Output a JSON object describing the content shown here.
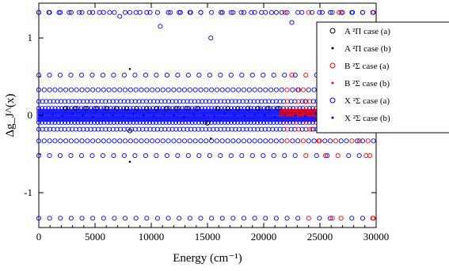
{
  "chart_data": {
    "type": "scatter",
    "title": "",
    "xlabel": "Energy (cm⁻¹)",
    "ylabel": "Δg_J^(x)",
    "xlim": [
      0,
      30000
    ],
    "ylim": [
      -1.45,
      1.45
    ],
    "x_ticks": [
      0,
      5000,
      10000,
      15000,
      20000,
      25000,
      30000
    ],
    "x_tick_labels": [
      "0",
      "5000",
      "10000",
      "15000",
      "20000",
      "25000",
      "30000"
    ],
    "y_ticks": [
      -1,
      0,
      1
    ],
    "y_tick_labels": [
      "-1",
      "0",
      "1"
    ],
    "grid": false,
    "legend_position": "top-right",
    "bands_y": [
      1.33,
      0.52,
      0.33,
      0.18,
      0.09,
      -0.09,
      -0.18,
      -0.33,
      -0.52,
      -1.33
    ],
    "series": [
      {
        "name": "A ²Π case (a)",
        "marker": "open-circle",
        "color": "#000000",
        "x": [
          2400,
          3300,
          4200,
          5100,
          6000,
          6900,
          7800,
          8100,
          8700,
          9600,
          10500,
          11400,
          12300,
          13200,
          14100,
          15000,
          15900,
          16800,
          17700,
          18600,
          19500,
          20400,
          21300
        ],
        "y": [
          0.09,
          0.09,
          0.09,
          0.09,
          0.09,
          0.09,
          0.09,
          -0.2,
          0.09,
          0.09,
          0.09,
          0.09,
          0.09,
          0.09,
          0.09,
          -0.1,
          0.09,
          0.09,
          0.09,
          0.09,
          0.09,
          0.09,
          0.09
        ]
      },
      {
        "name": "A ²Π case (b)",
        "marker": "dot",
        "color": "#000000",
        "x": [
          8100,
          8100,
          15300
        ],
        "y": [
          0.6,
          -0.6,
          -0.3
        ]
      },
      {
        "name": "B ²Σ case (a)",
        "marker": "open-circle",
        "color": "#ff0000",
        "x": [
          21900,
          22500,
          23100,
          23700,
          24300,
          24900,
          25500,
          26100,
          26700,
          27300,
          27900,
          28500,
          29100,
          29700
        ],
        "y": [
          1.33,
          0.52,
          0.33,
          0.18,
          -0.18,
          -0.33,
          -0.52,
          -1.33,
          1.33,
          0.52,
          0.33,
          -0.33,
          -0.52,
          -1.33
        ]
      },
      {
        "name": "B ²Σ case (b)",
        "marker": "dot",
        "color": "#ff0000",
        "x": [
          22200,
          23400,
          24600,
          25800,
          27000,
          28200,
          29400
        ],
        "y": [
          0.0,
          0.02,
          -0.02,
          0.01,
          0.0,
          -0.01,
          0.02
        ]
      },
      {
        "name": "X ²Σ case (a)",
        "marker": "open-circle",
        "color": "#0000ff",
        "x": [
          0,
          900,
          1800,
          2700,
          3600,
          4500,
          5400,
          6300,
          7200,
          8100,
          9000,
          9900,
          10800,
          11700,
          12600,
          13500,
          14400,
          15300,
          16200,
          17100,
          18000,
          18900,
          19800,
          20700,
          21600,
          22500,
          23400,
          24300,
          25200,
          26100,
          27000,
          27900,
          28800,
          29700
        ],
        "y": [
          1.33,
          1.33,
          1.33,
          1.33,
          1.33,
          1.33,
          1.33,
          1.33,
          1.28,
          1.33,
          1.33,
          1.33,
          1.15,
          1.33,
          1.33,
          1.33,
          1.33,
          1.0,
          1.33,
          1.33,
          1.33,
          1.33,
          1.33,
          1.33,
          1.33,
          1.2,
          1.33,
          1.33,
          1.33,
          1.33,
          1.33,
          1.33,
          1.33,
          1.33
        ]
      },
      {
        "name": "X ²Σ case (b)",
        "marker": "dot",
        "color": "#0000ff",
        "x": [
          300,
          1200,
          2100,
          3000,
          3900,
          4800,
          5700,
          6600,
          7500,
          8400,
          9300,
          10200,
          11100,
          12000,
          12900,
          13800,
          14700,
          15600,
          16500,
          17400,
          18300,
          19200,
          20100,
          21000,
          21900,
          22800,
          23700,
          24600,
          25500,
          26400,
          27300,
          28200,
          29100,
          30000
        ],
        "y": [
          0.0,
          0.01,
          -0.01,
          0.02,
          0.0,
          -0.02,
          0.01,
          0.0,
          -0.01,
          0.02,
          0.0,
          -0.01,
          0.01,
          0.0,
          -0.02,
          0.01,
          0.0,
          -0.01,
          0.02,
          0.0,
          -0.01,
          0.01,
          0.0,
          -0.02,
          0.01,
          0.0,
          -0.01,
          0.02,
          0.0,
          -0.01,
          0.01,
          0.0,
          -0.02,
          0.0
        ]
      }
    ]
  }
}
